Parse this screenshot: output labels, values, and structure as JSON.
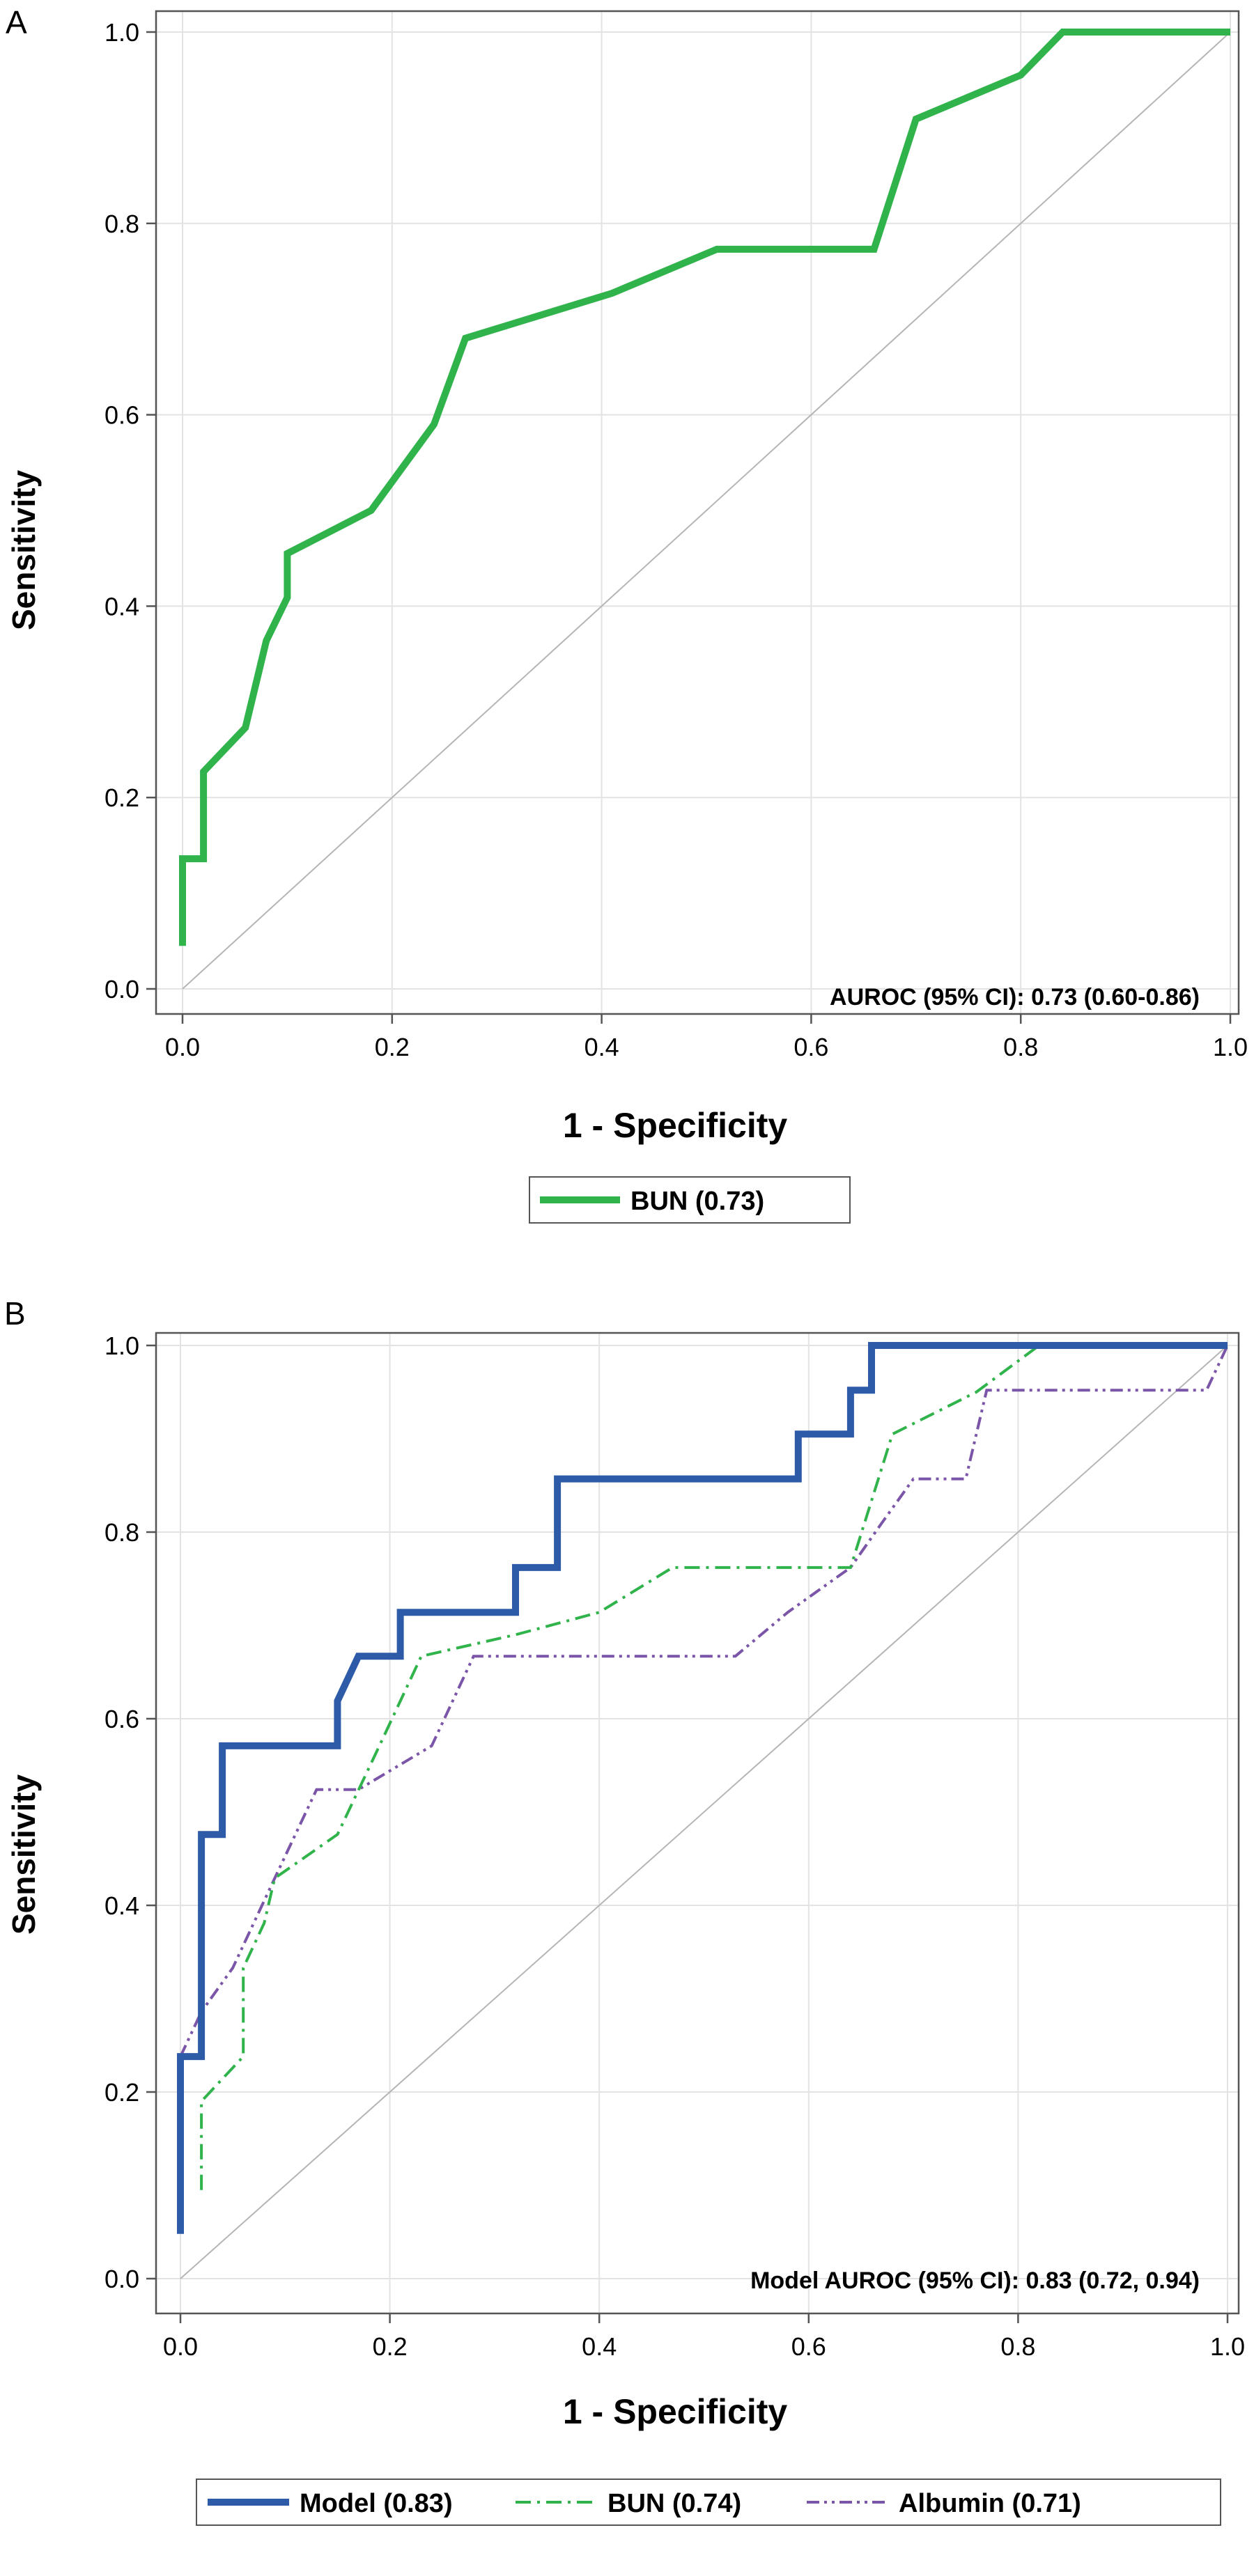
{
  "panels": [
    {
      "letter": "A",
      "xlabel": "1 - Specificity",
      "ylabel": "Sensitivity",
      "annotation": "AUROC (95% CI): 0.73 (0.60-0.86)",
      "xticks": [
        "0.0",
        "0.2",
        "0.4",
        "0.6",
        "0.8",
        "1.0"
      ],
      "yticks": [
        "0.0",
        "0.2",
        "0.4",
        "0.6",
        "0.8",
        "1.0"
      ]
    },
    {
      "letter": "B",
      "xlabel": "1 - Specificity",
      "ylabel": "Sensitivity",
      "annotation": "Model AUROC (95% CI): 0.83 (0.72, 0.94)",
      "xticks": [
        "0.0",
        "0.2",
        "0.4",
        "0.6",
        "0.8",
        "1.0"
      ],
      "yticks": [
        "0.0",
        "0.2",
        "0.4",
        "0.6",
        "0.8",
        "1.0"
      ]
    }
  ],
  "chart_data": [
    {
      "type": "line",
      "panel": "A",
      "xlabel": "1 - Specificity",
      "ylabel": "Sensitivity",
      "xlim": [
        0,
        1
      ],
      "ylim": [
        0,
        1
      ],
      "grid": true,
      "legend_position": "bottom",
      "diagonal_reference": true,
      "series": [
        {
          "name": "BUN (0.73)",
          "color": "#2FB34A",
          "style": "solid",
          "x": [
            0.0,
            0.0,
            0.02,
            0.02,
            0.06,
            0.08,
            0.1,
            0.1,
            0.18,
            0.24,
            0.27,
            0.41,
            0.51,
            0.66,
            0.7,
            0.8,
            0.84,
            1.0
          ],
          "y": [
            0.045,
            0.136,
            0.136,
            0.227,
            0.273,
            0.364,
            0.409,
            0.455,
            0.5,
            0.59,
            0.68,
            0.727,
            0.773,
            0.773,
            0.909,
            0.955,
            1.0,
            1.0
          ]
        }
      ]
    },
    {
      "type": "line",
      "panel": "B",
      "xlabel": "1 - Specificity",
      "ylabel": "Sensitivity",
      "xlim": [
        0,
        1
      ],
      "ylim": [
        0,
        1
      ],
      "grid": true,
      "legend_position": "bottom",
      "diagonal_reference": true,
      "series": [
        {
          "name": "Model (0.83)",
          "color": "#2E5BA8",
          "style": "solid",
          "x": [
            0.0,
            0.0,
            0.02,
            0.02,
            0.04,
            0.04,
            0.15,
            0.15,
            0.17,
            0.21,
            0.21,
            0.32,
            0.32,
            0.36,
            0.36,
            0.59,
            0.59,
            0.64,
            0.64,
            0.66,
            0.66,
            1.0
          ],
          "y": [
            0.048,
            0.238,
            0.238,
            0.476,
            0.476,
            0.571,
            0.571,
            0.619,
            0.667,
            0.667,
            0.714,
            0.714,
            0.762,
            0.762,
            0.857,
            0.857,
            0.905,
            0.905,
            0.952,
            0.952,
            1.0,
            1.0
          ]
        },
        {
          "name": "BUN (0.74)",
          "color": "#2FB34A",
          "style": "dash-dot",
          "x": [
            0.02,
            0.02,
            0.06,
            0.06,
            0.08,
            0.09,
            0.15,
            0.19,
            0.23,
            0.32,
            0.4,
            0.47,
            0.58,
            0.64,
            0.68,
            0.76,
            0.82
          ],
          "y": [
            0.095,
            0.19,
            0.238,
            0.333,
            0.381,
            0.429,
            0.476,
            0.571,
            0.667,
            0.69,
            0.714,
            0.762,
            0.762,
            0.762,
            0.905,
            0.95,
            1.0
          ]
        },
        {
          "name": "Albumin (0.71)",
          "color": "#7B55A8",
          "style": "dash-dot-dot",
          "x": [
            0.0,
            0.02,
            0.05,
            0.09,
            0.13,
            0.17,
            0.24,
            0.28,
            0.36,
            0.53,
            0.58,
            0.64,
            0.67,
            0.7,
            0.75,
            0.77,
            0.98,
            1.0
          ],
          "y": [
            0.238,
            0.286,
            0.333,
            0.429,
            0.524,
            0.524,
            0.571,
            0.667,
            0.667,
            0.667,
            0.714,
            0.762,
            0.81,
            0.857,
            0.857,
            0.952,
            0.952,
            1.0
          ]
        }
      ]
    }
  ]
}
